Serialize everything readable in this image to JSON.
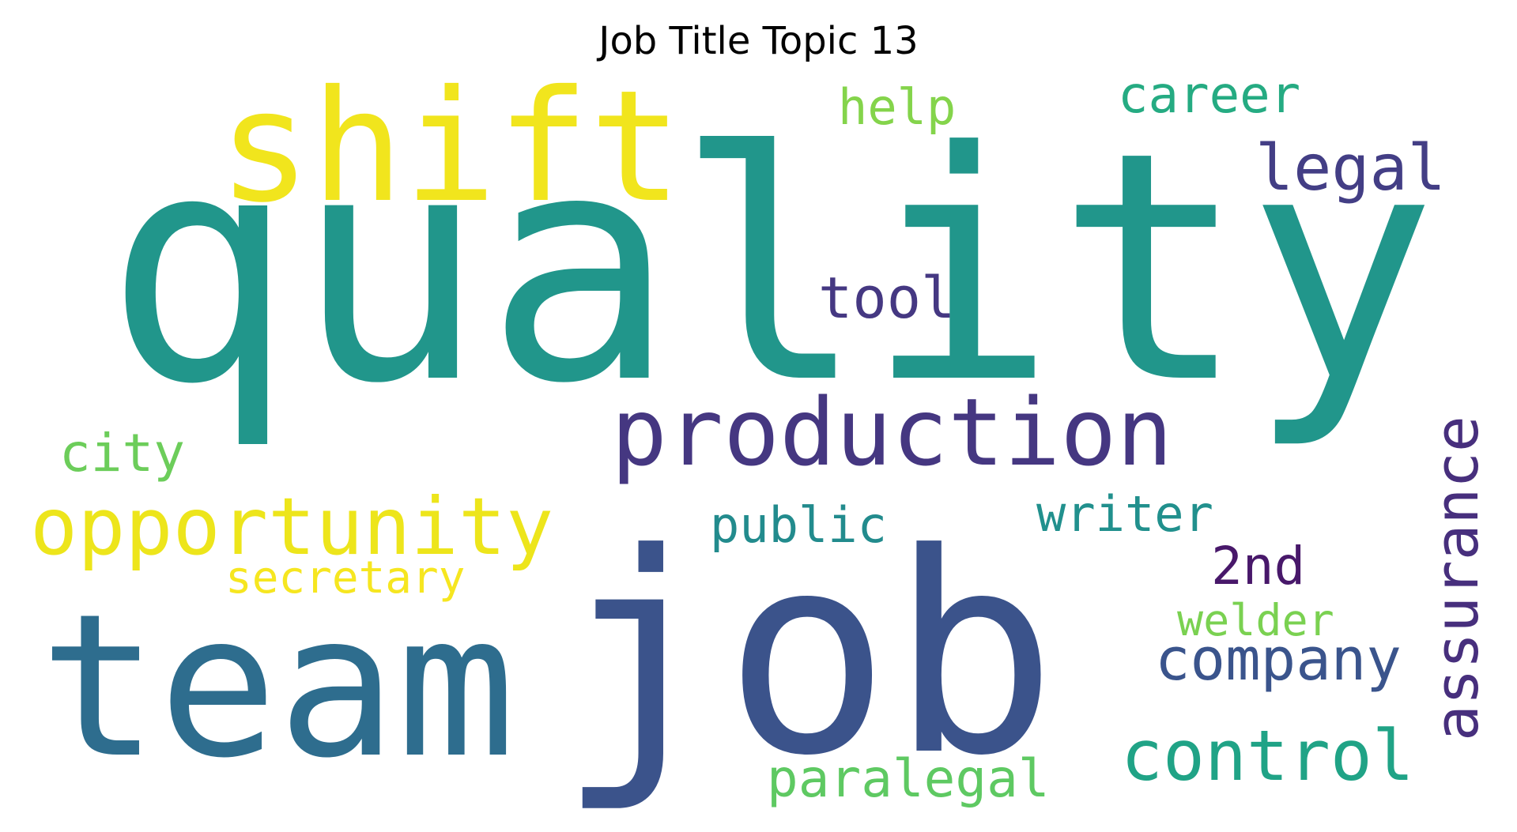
{
  "title": "Job Title Topic 13",
  "words": [
    {
      "id": "quality",
      "text": "quality",
      "color": "#21968b"
    },
    {
      "id": "job",
      "text": "job",
      "color": "#3b538b"
    },
    {
      "id": "team",
      "text": "team",
      "color": "#2e6d8e"
    },
    {
      "id": "shift",
      "text": "shift",
      "color": "#f1e51d"
    },
    {
      "id": "production",
      "text": "production",
      "color": "#453781"
    },
    {
      "id": "opportunity",
      "text": "opportunity",
      "color": "#ede51b"
    },
    {
      "id": "control",
      "text": "control",
      "color": "#20a386"
    },
    {
      "id": "assurance",
      "text": "assurance",
      "color": "#472f7d"
    },
    {
      "id": "company",
      "text": "company",
      "color": "#3a548c"
    },
    {
      "id": "legal",
      "text": "legal",
      "color": "#433e85"
    },
    {
      "id": "paralegal",
      "text": "paralegal",
      "color": "#5ec962"
    },
    {
      "id": "career",
      "text": "career",
      "color": "#25ab82"
    },
    {
      "id": "writer",
      "text": "writer",
      "color": "#21908d"
    },
    {
      "id": "tool",
      "text": "tool",
      "color": "#453882"
    },
    {
      "id": "city",
      "text": "city",
      "color": "#6ccd5a"
    },
    {
      "id": "public",
      "text": "public",
      "color": "#228b8d"
    },
    {
      "id": "help",
      "text": "help",
      "color": "#84d44b"
    },
    {
      "id": "2nd",
      "text": "2nd",
      "color": "#48186a"
    },
    {
      "id": "secretary",
      "text": "secretary",
      "color": "#f6e620"
    },
    {
      "id": "welder",
      "text": "welder",
      "color": "#7ad151"
    }
  ]
}
